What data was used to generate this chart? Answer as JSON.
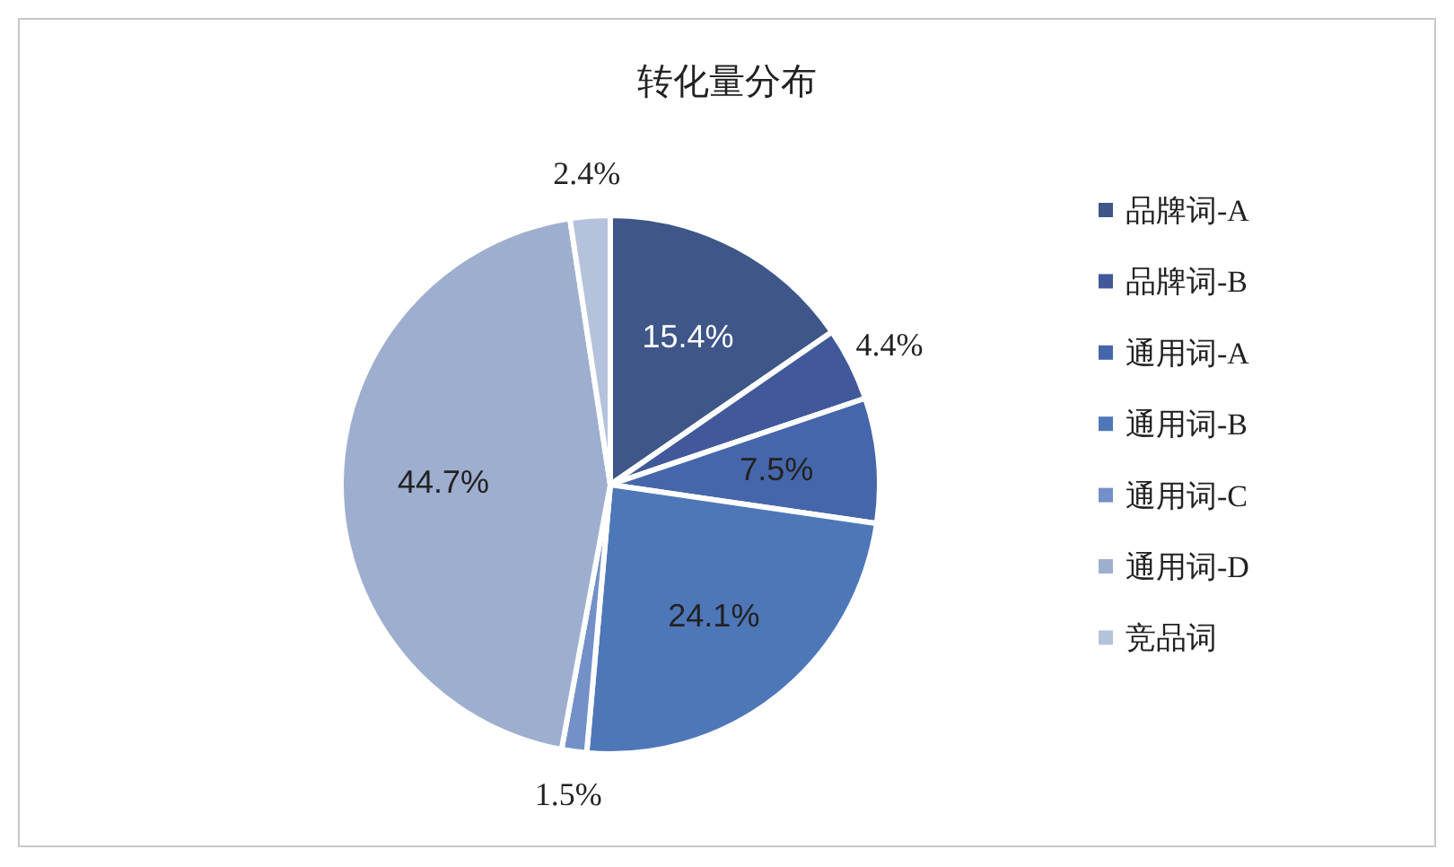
{
  "chart_data": {
    "type": "pie",
    "title": "转化量分布",
    "categories": [
      "品牌词-A",
      "品牌词-B",
      "通用词-A",
      "通用词-B",
      "通用词-C",
      "通用词-D",
      "竞品词"
    ],
    "values": [
      15.4,
      4.4,
      7.5,
      24.1,
      1.5,
      44.7,
      2.4
    ],
    "value_labels": [
      "15.4%",
      "4.4%",
      "7.5%",
      "24.1%",
      "1.5%",
      "44.7%",
      "2.4%"
    ],
    "colors": [
      "#3e5688",
      "#41599a",
      "#4566aa",
      "#4e77b8",
      "#7390c8",
      "#9eaecf",
      "#b5c2dc"
    ],
    "legend": "right"
  }
}
